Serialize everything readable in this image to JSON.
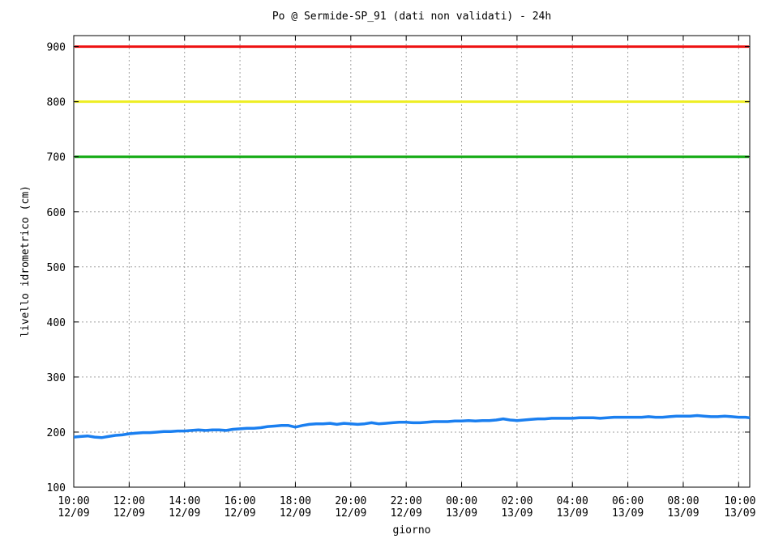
{
  "chart_data": {
    "type": "line",
    "title": "Po @ Sermide-SP_91 (dati non validati) - 24h",
    "xlabel": "giorno",
    "ylabel": "livello idrometrico (cm)",
    "ylim": [
      100,
      920
    ],
    "xlim_hours": [
      0,
      24.4
    ],
    "grid": true,
    "y_ticks": [
      "100",
      "200",
      "300",
      "400",
      "500",
      "600",
      "700",
      "800",
      "900"
    ],
    "x_ticks": [
      {
        "time": "10:00",
        "date": "12/09"
      },
      {
        "time": "12:00",
        "date": "12/09"
      },
      {
        "time": "14:00",
        "date": "12/09"
      },
      {
        "time": "16:00",
        "date": "12/09"
      },
      {
        "time": "18:00",
        "date": "12/09"
      },
      {
        "time": "20:00",
        "date": "12/09"
      },
      {
        "time": "22:00",
        "date": "12/09"
      },
      {
        "time": "00:00",
        "date": "13/09"
      },
      {
        "time": "02:00",
        "date": "13/09"
      },
      {
        "time": "04:00",
        "date": "13/09"
      },
      {
        "time": "06:00",
        "date": "13/09"
      },
      {
        "time": "08:00",
        "date": "13/09"
      },
      {
        "time": "10:00",
        "date": "13/09"
      }
    ],
    "thresholds": [
      {
        "value": 900,
        "color": "#ee1111"
      },
      {
        "value": 800,
        "color": "#eeee22"
      },
      {
        "value": 700,
        "color": "#11aa11"
      }
    ],
    "series": [
      {
        "color": "#1a7ff0",
        "points": [
          [
            0.0,
            191
          ],
          [
            0.25,
            192
          ],
          [
            0.5,
            193
          ],
          [
            0.75,
            191
          ],
          [
            1.0,
            190
          ],
          [
            1.25,
            192
          ],
          [
            1.5,
            194
          ],
          [
            1.75,
            195
          ],
          [
            2.0,
            197
          ],
          [
            2.25,
            198
          ],
          [
            2.5,
            199
          ],
          [
            2.75,
            199
          ],
          [
            3.0,
            200
          ],
          [
            3.25,
            201
          ],
          [
            3.5,
            201
          ],
          [
            3.75,
            202
          ],
          [
            4.0,
            202
          ],
          [
            4.25,
            203
          ],
          [
            4.5,
            204
          ],
          [
            4.75,
            203
          ],
          [
            5.0,
            204
          ],
          [
            5.25,
            204
          ],
          [
            5.5,
            203
          ],
          [
            5.75,
            205
          ],
          [
            6.0,
            206
          ],
          [
            6.25,
            207
          ],
          [
            6.5,
            207
          ],
          [
            6.75,
            208
          ],
          [
            7.0,
            210
          ],
          [
            7.25,
            211
          ],
          [
            7.5,
            212
          ],
          [
            7.75,
            212
          ],
          [
            8.0,
            209
          ],
          [
            8.25,
            212
          ],
          [
            8.5,
            214
          ],
          [
            8.75,
            215
          ],
          [
            9.0,
            215
          ],
          [
            9.25,
            216
          ],
          [
            9.5,
            214
          ],
          [
            9.75,
            216
          ],
          [
            10.0,
            215
          ],
          [
            10.25,
            214
          ],
          [
            10.5,
            215
          ],
          [
            10.75,
            217
          ],
          [
            11.0,
            215
          ],
          [
            11.25,
            216
          ],
          [
            11.5,
            217
          ],
          [
            11.75,
            218
          ],
          [
            12.0,
            218
          ],
          [
            12.25,
            217
          ],
          [
            12.5,
            217
          ],
          [
            12.75,
            218
          ],
          [
            13.0,
            219
          ],
          [
            13.25,
            219
          ],
          [
            13.5,
            219
          ],
          [
            13.75,
            220
          ],
          [
            14.0,
            220
          ],
          [
            14.25,
            221
          ],
          [
            14.5,
            220
          ],
          [
            14.75,
            221
          ],
          [
            15.0,
            221
          ],
          [
            15.25,
            222
          ],
          [
            15.5,
            224
          ],
          [
            15.75,
            222
          ],
          [
            16.0,
            221
          ],
          [
            16.25,
            222
          ],
          [
            16.5,
            223
          ],
          [
            16.75,
            224
          ],
          [
            17.0,
            224
          ],
          [
            17.25,
            225
          ],
          [
            17.5,
            225
          ],
          [
            17.75,
            225
          ],
          [
            18.0,
            225
          ],
          [
            18.25,
            226
          ],
          [
            18.5,
            226
          ],
          [
            18.75,
            226
          ],
          [
            19.0,
            225
          ],
          [
            19.25,
            226
          ],
          [
            19.5,
            227
          ],
          [
            19.75,
            227
          ],
          [
            20.0,
            227
          ],
          [
            20.25,
            227
          ],
          [
            20.5,
            227
          ],
          [
            20.75,
            228
          ],
          [
            21.0,
            227
          ],
          [
            21.25,
            227
          ],
          [
            21.5,
            228
          ],
          [
            21.75,
            229
          ],
          [
            22.0,
            229
          ],
          [
            22.25,
            229
          ],
          [
            22.5,
            230
          ],
          [
            22.75,
            229
          ],
          [
            23.0,
            228
          ],
          [
            23.25,
            228
          ],
          [
            23.5,
            229
          ],
          [
            23.75,
            228
          ],
          [
            24.0,
            227
          ],
          [
            24.25,
            227
          ],
          [
            24.4,
            226
          ]
        ]
      }
    ]
  }
}
